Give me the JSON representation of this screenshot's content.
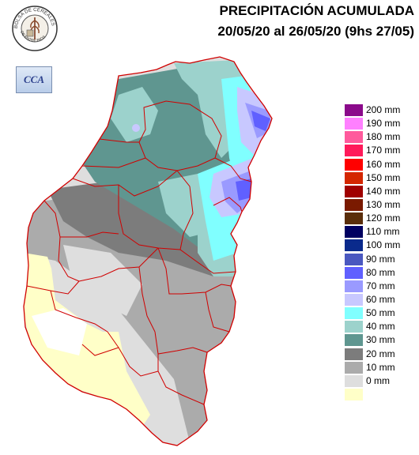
{
  "header": {
    "title": "PRECIPITACIÓN ACUMULADA",
    "period": "20/05/20  al 26/05/20 (9hs 27/05)"
  },
  "logos": {
    "bolsa_top": "BOLSA DE CEREALES",
    "bolsa_bottom": "DE ENTRE RIOS",
    "cca": "CCA"
  },
  "legend": [
    {
      "label": "200 mm",
      "color": "#8b0a8b"
    },
    {
      "label": "190 mm",
      "color": "#ff80ff"
    },
    {
      "label": "180 mm",
      "color": "#ff5a9c"
    },
    {
      "label": "170 mm",
      "color": "#ff1a5a"
    },
    {
      "label": "160 mm",
      "color": "#ff0000"
    },
    {
      "label": "150 mm",
      "color": "#d42600"
    },
    {
      "label": "140 mm",
      "color": "#a00000"
    },
    {
      "label": "130 mm",
      "color": "#7a1a00"
    },
    {
      "label": "120 mm",
      "color": "#5a2e0a"
    },
    {
      "label": "110 mm",
      "color": "#000060"
    },
    {
      "label": "100 mm",
      "color": "#0a2a8c"
    },
    {
      "label": "90 mm",
      "color": "#4a58c0"
    },
    {
      "label": "80 mm",
      "color": "#6060ff"
    },
    {
      "label": "70 mm",
      "color": "#9a9aff"
    },
    {
      "label": "60 mm",
      "color": "#c8c8ff"
    },
    {
      "label": "50 mm",
      "color": "#80ffff"
    },
    {
      "label": "40 mm",
      "color": "#9cd2cc"
    },
    {
      "label": "30 mm",
      "color": "#5f9690"
    },
    {
      "label": "20 mm",
      "color": "#7c7c7c"
    },
    {
      "label": "10 mm",
      "color": "#ababab"
    },
    {
      "label": "0 mm",
      "color": "#dedede"
    },
    {
      "label": "",
      "color": "#ffffc8"
    }
  ]
}
